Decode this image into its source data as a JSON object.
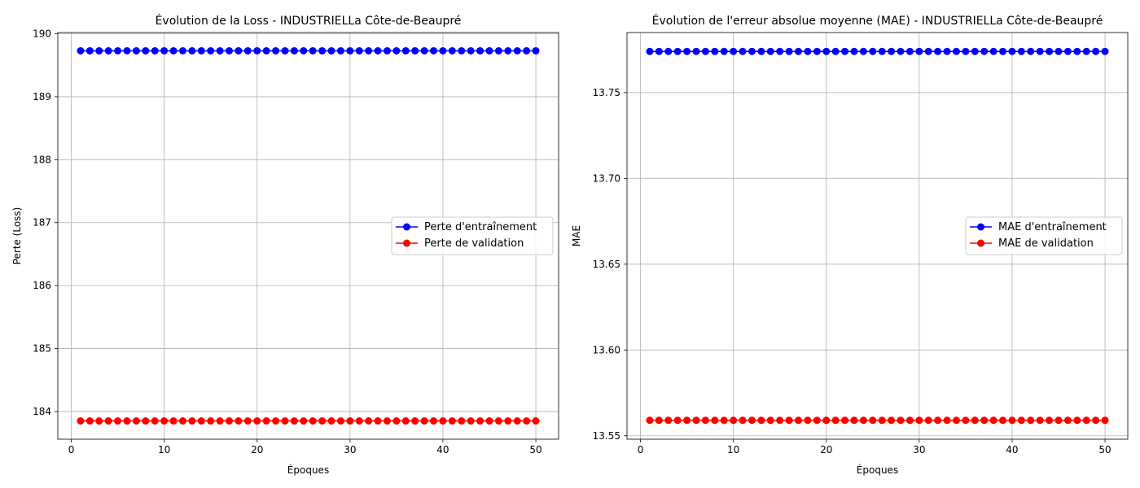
{
  "chart_data": [
    {
      "type": "line",
      "title": "Évolution de la Loss - INDUSTRIELLa Côte-de-Beaupré",
      "xlabel": "Époques",
      "ylabel": "Perte (Loss)",
      "xlim": [
        -1.45,
        52.45
      ],
      "ylim": [
        183.56,
        190.02
      ],
      "xticks": [
        0,
        10,
        20,
        30,
        40,
        50
      ],
      "xtick_labels": [
        "0",
        "10",
        "20",
        "30",
        "40",
        "50"
      ],
      "yticks": [
        184,
        185,
        186,
        187,
        188,
        189,
        190
      ],
      "ytick_labels": [
        "184",
        "185",
        "186",
        "187",
        "188",
        "189",
        "190"
      ],
      "grid": true,
      "legend_position": "center-right",
      "x": [
        1,
        2,
        3,
        4,
        5,
        6,
        7,
        8,
        9,
        10,
        11,
        12,
        13,
        14,
        15,
        16,
        17,
        18,
        19,
        20,
        21,
        22,
        23,
        24,
        25,
        26,
        27,
        28,
        29,
        30,
        31,
        32,
        33,
        34,
        35,
        36,
        37,
        38,
        39,
        40,
        41,
        42,
        43,
        44,
        45,
        46,
        47,
        48,
        49,
        50
      ],
      "series": [
        {
          "name": "Perte d'entraînement",
          "color": "#0000ff",
          "marker": "circle",
          "values": [
            189.73,
            189.73,
            189.73,
            189.73,
            189.73,
            189.73,
            189.73,
            189.73,
            189.73,
            189.73,
            189.73,
            189.73,
            189.73,
            189.73,
            189.73,
            189.73,
            189.73,
            189.73,
            189.73,
            189.73,
            189.73,
            189.73,
            189.73,
            189.73,
            189.73,
            189.73,
            189.73,
            189.73,
            189.73,
            189.73,
            189.73,
            189.73,
            189.73,
            189.73,
            189.73,
            189.73,
            189.73,
            189.73,
            189.73,
            189.73,
            189.73,
            189.73,
            189.73,
            189.73,
            189.73,
            189.73,
            189.73,
            189.73,
            189.73,
            189.73
          ]
        },
        {
          "name": "Perte de validation",
          "color": "#ff0000",
          "marker": "circle",
          "values": [
            183.85,
            183.85,
            183.85,
            183.85,
            183.85,
            183.85,
            183.85,
            183.85,
            183.85,
            183.85,
            183.85,
            183.85,
            183.85,
            183.85,
            183.85,
            183.85,
            183.85,
            183.85,
            183.85,
            183.85,
            183.85,
            183.85,
            183.85,
            183.85,
            183.85,
            183.85,
            183.85,
            183.85,
            183.85,
            183.85,
            183.85,
            183.85,
            183.85,
            183.85,
            183.85,
            183.85,
            183.85,
            183.85,
            183.85,
            183.85,
            183.85,
            183.85,
            183.85,
            183.85,
            183.85,
            183.85,
            183.85,
            183.85,
            183.85,
            183.85
          ]
        }
      ]
    },
    {
      "type": "line",
      "title": "Évolution de l'erreur absolue moyenne (MAE) - INDUSTRIELLa Côte-de-Beaupré",
      "xlabel": "Époques",
      "ylabel": "MAE",
      "xlim": [
        -1.45,
        52.45
      ],
      "ylim": [
        13.548,
        13.785
      ],
      "xticks": [
        0,
        10,
        20,
        30,
        40,
        50
      ],
      "xtick_labels": [
        "0",
        "10",
        "20",
        "30",
        "40",
        "50"
      ],
      "yticks": [
        13.55,
        13.6,
        13.65,
        13.7,
        13.75
      ],
      "ytick_labels": [
        "13.55",
        "13.60",
        "13.65",
        "13.70",
        "13.75"
      ],
      "grid": true,
      "legend_position": "center-right",
      "x": [
        1,
        2,
        3,
        4,
        5,
        6,
        7,
        8,
        9,
        10,
        11,
        12,
        13,
        14,
        15,
        16,
        17,
        18,
        19,
        20,
        21,
        22,
        23,
        24,
        25,
        26,
        27,
        28,
        29,
        30,
        31,
        32,
        33,
        34,
        35,
        36,
        37,
        38,
        39,
        40,
        41,
        42,
        43,
        44,
        45,
        46,
        47,
        48,
        49,
        50
      ],
      "series": [
        {
          "name": "MAE d'entraînement",
          "color": "#0000ff",
          "marker": "circle",
          "values": [
            13.774,
            13.774,
            13.774,
            13.774,
            13.774,
            13.774,
            13.774,
            13.774,
            13.774,
            13.774,
            13.774,
            13.774,
            13.774,
            13.774,
            13.774,
            13.774,
            13.774,
            13.774,
            13.774,
            13.774,
            13.774,
            13.774,
            13.774,
            13.774,
            13.774,
            13.774,
            13.774,
            13.774,
            13.774,
            13.774,
            13.774,
            13.774,
            13.774,
            13.774,
            13.774,
            13.774,
            13.774,
            13.774,
            13.774,
            13.774,
            13.774,
            13.774,
            13.774,
            13.774,
            13.774,
            13.774,
            13.774,
            13.774,
            13.774,
            13.774
          ]
        },
        {
          "name": "MAE de validation",
          "color": "#ff0000",
          "marker": "circle",
          "values": [
            13.559,
            13.559,
            13.559,
            13.559,
            13.559,
            13.559,
            13.559,
            13.559,
            13.559,
            13.559,
            13.559,
            13.559,
            13.559,
            13.559,
            13.559,
            13.559,
            13.559,
            13.559,
            13.559,
            13.559,
            13.559,
            13.559,
            13.559,
            13.559,
            13.559,
            13.559,
            13.559,
            13.559,
            13.559,
            13.559,
            13.559,
            13.559,
            13.559,
            13.559,
            13.559,
            13.559,
            13.559,
            13.559,
            13.559,
            13.559,
            13.559,
            13.559,
            13.559,
            13.559,
            13.559,
            13.559,
            13.559,
            13.559,
            13.559,
            13.559
          ]
        }
      ]
    }
  ]
}
